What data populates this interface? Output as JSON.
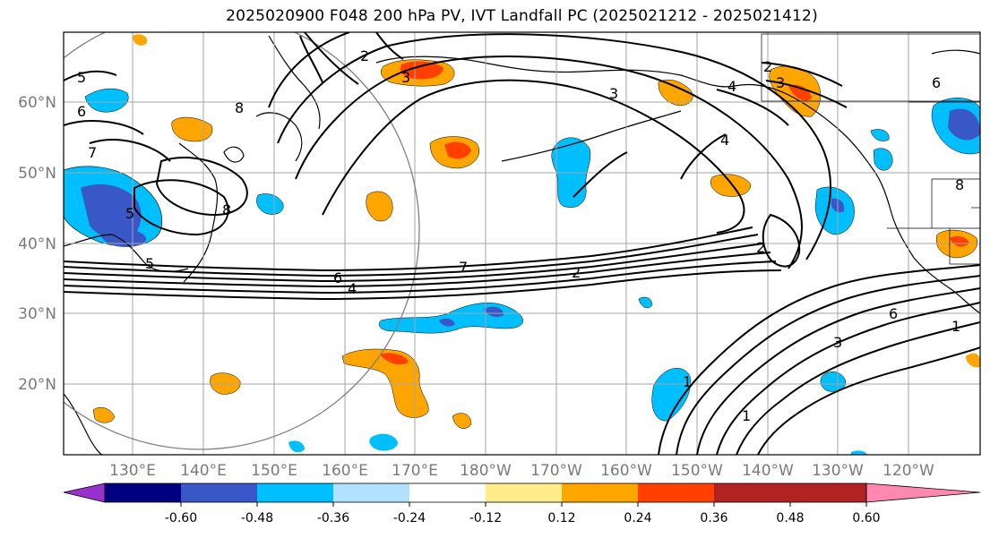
{
  "title": "2025020900 F048 200 hPa PV, IVT Landfall PC (2025021212 - 2025021412)",
  "map": {
    "lon_ticks": [
      "130°E",
      "140°E",
      "150°E",
      "160°E",
      "170°E",
      "180°W",
      "170°W",
      "160°W",
      "150°W",
      "140°W",
      "130°W",
      "120°W"
    ],
    "lat_ticks": [
      "60°N",
      "50°N",
      "40°N",
      "30°N",
      "20°N"
    ],
    "contour_labels": [
      "5",
      "6",
      "7",
      "8",
      "5",
      "5",
      "2",
      "3",
      "3",
      "2",
      "3",
      "4",
      "4",
      "6",
      "8",
      "8",
      "2",
      "6",
      "4",
      "7",
      "2",
      "1",
      "1",
      "3",
      "6",
      "1"
    ]
  },
  "colorbar": {
    "tick_labels": [
      "-0.60",
      "-0.48",
      "-0.36",
      "-0.24",
      "-0.12",
      "0.12",
      "0.24",
      "0.36",
      "0.48",
      "0.60"
    ],
    "colors": [
      "#9932cc",
      "#000080",
      "#3a57c8",
      "#00bfff",
      "#b0e2ff",
      "#ffffff",
      "#ffec8b",
      "#ffa500",
      "#ff4000",
      "#b22222",
      "#ff88b0"
    ]
  }
}
